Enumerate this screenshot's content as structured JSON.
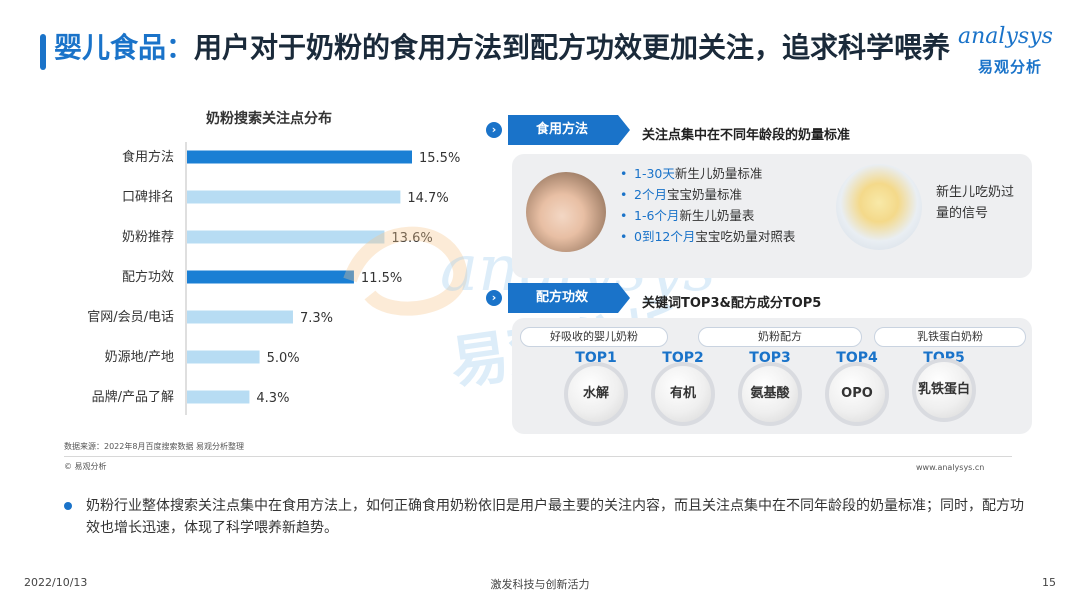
{
  "header": {
    "title_prefix": "婴儿食品：",
    "title_main": "用户对于奶粉的食用方法到配方功效更加关注，追求科学喂养",
    "logo_main": "analysys",
    "logo_sub": "易观分析"
  },
  "chart_data": {
    "type": "bar",
    "title": "奶粉搜索关注点分布",
    "categories": [
      "食用方法",
      "口碑排名",
      "奶粉推荐",
      "配方功效",
      "官网/会员/电话",
      "奶源地/产地",
      "品牌/产品了解"
    ],
    "values": [
      15.5,
      14.7,
      13.6,
      11.5,
      7.3,
      5.0,
      4.3
    ],
    "value_labels": [
      "15.5%",
      "14.7%",
      "13.6%",
      "11.5%",
      "7.3%",
      "5.0%",
      "4.3%"
    ],
    "highlight": [
      true,
      false,
      false,
      true,
      false,
      false,
      false
    ],
    "colors": {
      "highlight": "#1a7fd4",
      "normal": "#b7dcf3"
    },
    "orientation": "horizontal",
    "xlim": [
      0,
      16
    ]
  },
  "watermark": {
    "line1": "analysys",
    "line2": "易观分析"
  },
  "source": "数据来源：2022年8月百度搜索数据 易观分析整理",
  "copyright": "© 易观分析",
  "website": "www.analysys.cn",
  "section1": {
    "tag": "食用方法",
    "desc": "关注点集中在不同年龄段的奶量标准",
    "bullets": [
      {
        "pre": "",
        "hl": "1-30天",
        "post": "新生儿奶量标准"
      },
      {
        "pre": "",
        "hl": "2个月",
        "post": "宝宝奶量标准"
      },
      {
        "pre": "",
        "hl": "1-6个月",
        "post": "新生儿奶量表"
      },
      {
        "pre": "",
        "hl": "0到12个月",
        "post": "宝宝吃奶量对照表"
      }
    ],
    "signal": "新生儿吃奶过量的信号"
  },
  "section2": {
    "tag": "配方功效",
    "desc": "关键词TOP3&配方成分TOP5",
    "keywords": [
      "好吸收的婴儿奶粉",
      "奶粉配方",
      "乳铁蛋白奶粉"
    ],
    "tops": [
      {
        "label": "TOP1",
        "name": "水解"
      },
      {
        "label": "TOP2",
        "name": "有机"
      },
      {
        "label": "TOP3",
        "name": "氨基酸"
      },
      {
        "label": "TOP4",
        "name": "OPO"
      },
      {
        "label": "TOP5",
        "name": "乳铁蛋白"
      }
    ]
  },
  "summary": "奶粉行业整体搜索关注点集中在食用方法上，如何正确食用奶粉依旧是用户最主要的关注内容，而且关注点集中在不同年龄段的奶量标准；同时，配方功效也增长迅速，体现了科学喂养新趋势。",
  "footer": {
    "date": "2022/10/13",
    "slogan": "激发科技与创新活力",
    "page": "15"
  }
}
